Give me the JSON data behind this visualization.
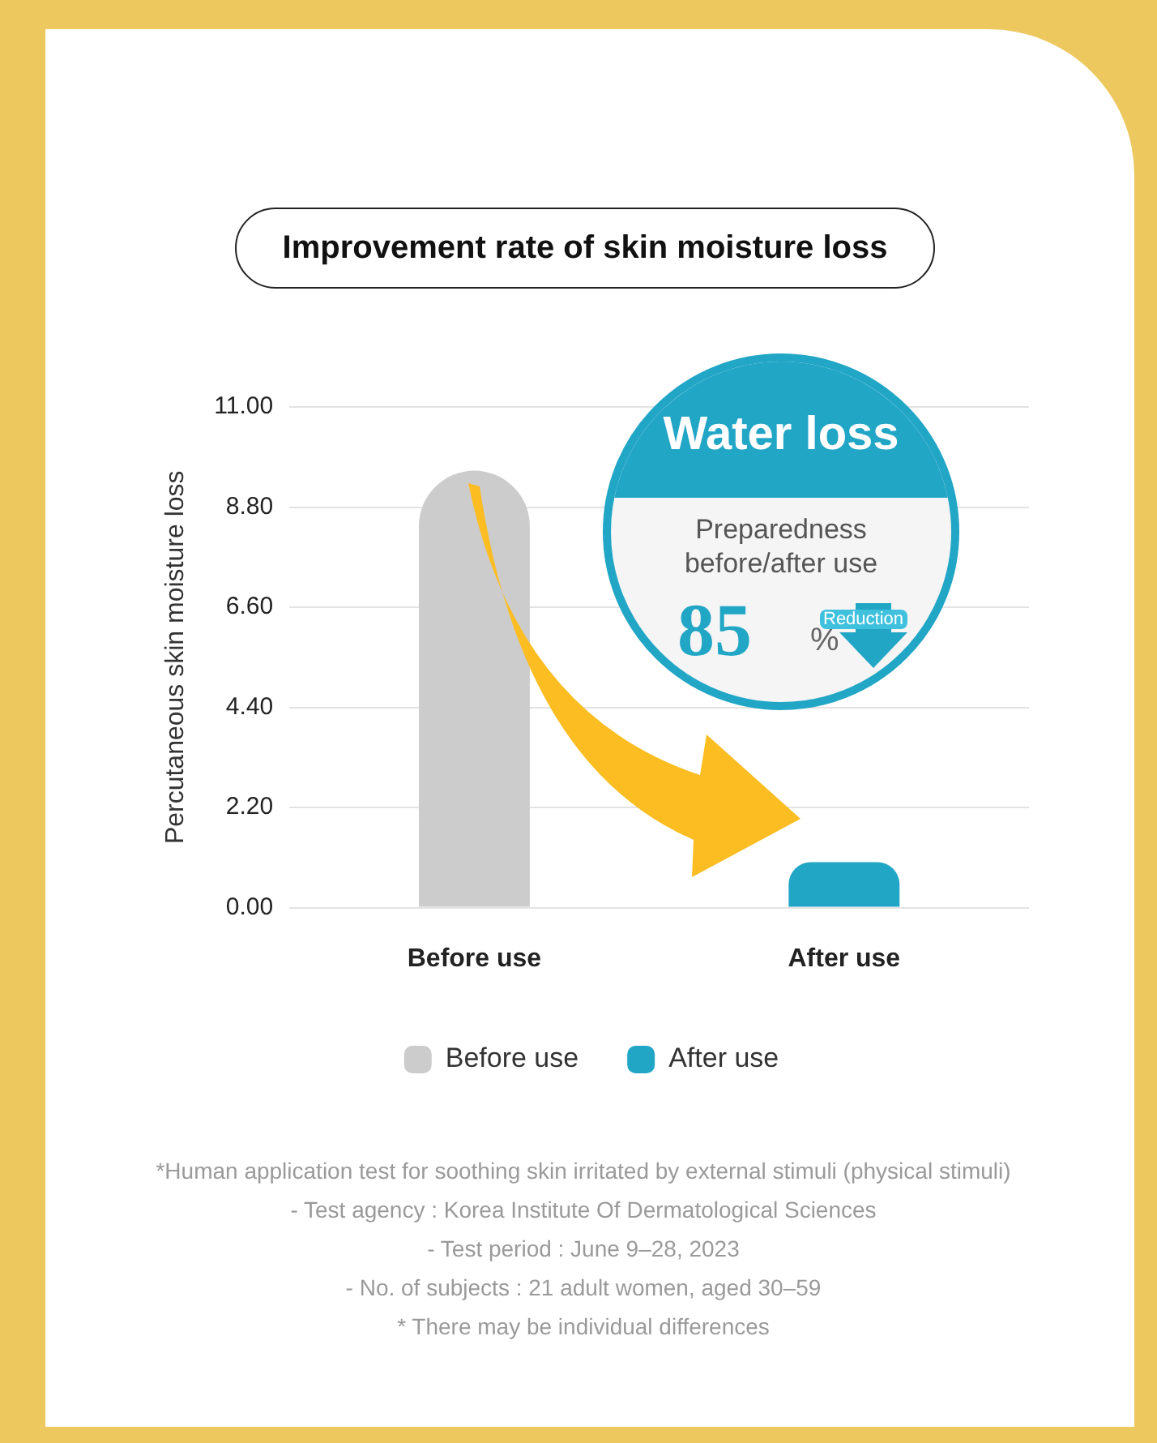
{
  "chart_data": {
    "type": "bar",
    "title": "Improvement rate of skin moisture loss",
    "ylabel": "Percutaneous skin moisture loss",
    "categories": [
      "Before use",
      "After use"
    ],
    "series": [
      {
        "name": "Before use",
        "color": "#cccccc",
        "values": [
          9.6,
          null
        ]
      },
      {
        "name": "After use",
        "color": "#22a6c6",
        "values": [
          null,
          1.0
        ]
      }
    ],
    "ylim": [
      0,
      11
    ],
    "yticks": [
      {
        "value": 0,
        "label": "0.00"
      },
      {
        "value": 2.2,
        "label": "2.20"
      },
      {
        "value": 4.4,
        "label": "4.40"
      },
      {
        "value": 6.6,
        "label": "6.60"
      },
      {
        "value": 8.8,
        "label": "8.80"
      },
      {
        "value": 11,
        "label": "11.00"
      }
    ],
    "grid": "y",
    "legend": "bottom",
    "annotations": [
      "Water loss",
      "Preparedness before/after use",
      "85",
      "%",
      "Reduction",
      "*Human application test for soothing skin irritated by external stimuli (physical stimuli)",
      "- Test agency : Korea Institute Of Dermatological Sciences",
      "- Test period : June 9–28, 2023",
      "- No. of subjects : 21 adult women, aged 30–59",
      "* There may be individual differences"
    ]
  }
}
